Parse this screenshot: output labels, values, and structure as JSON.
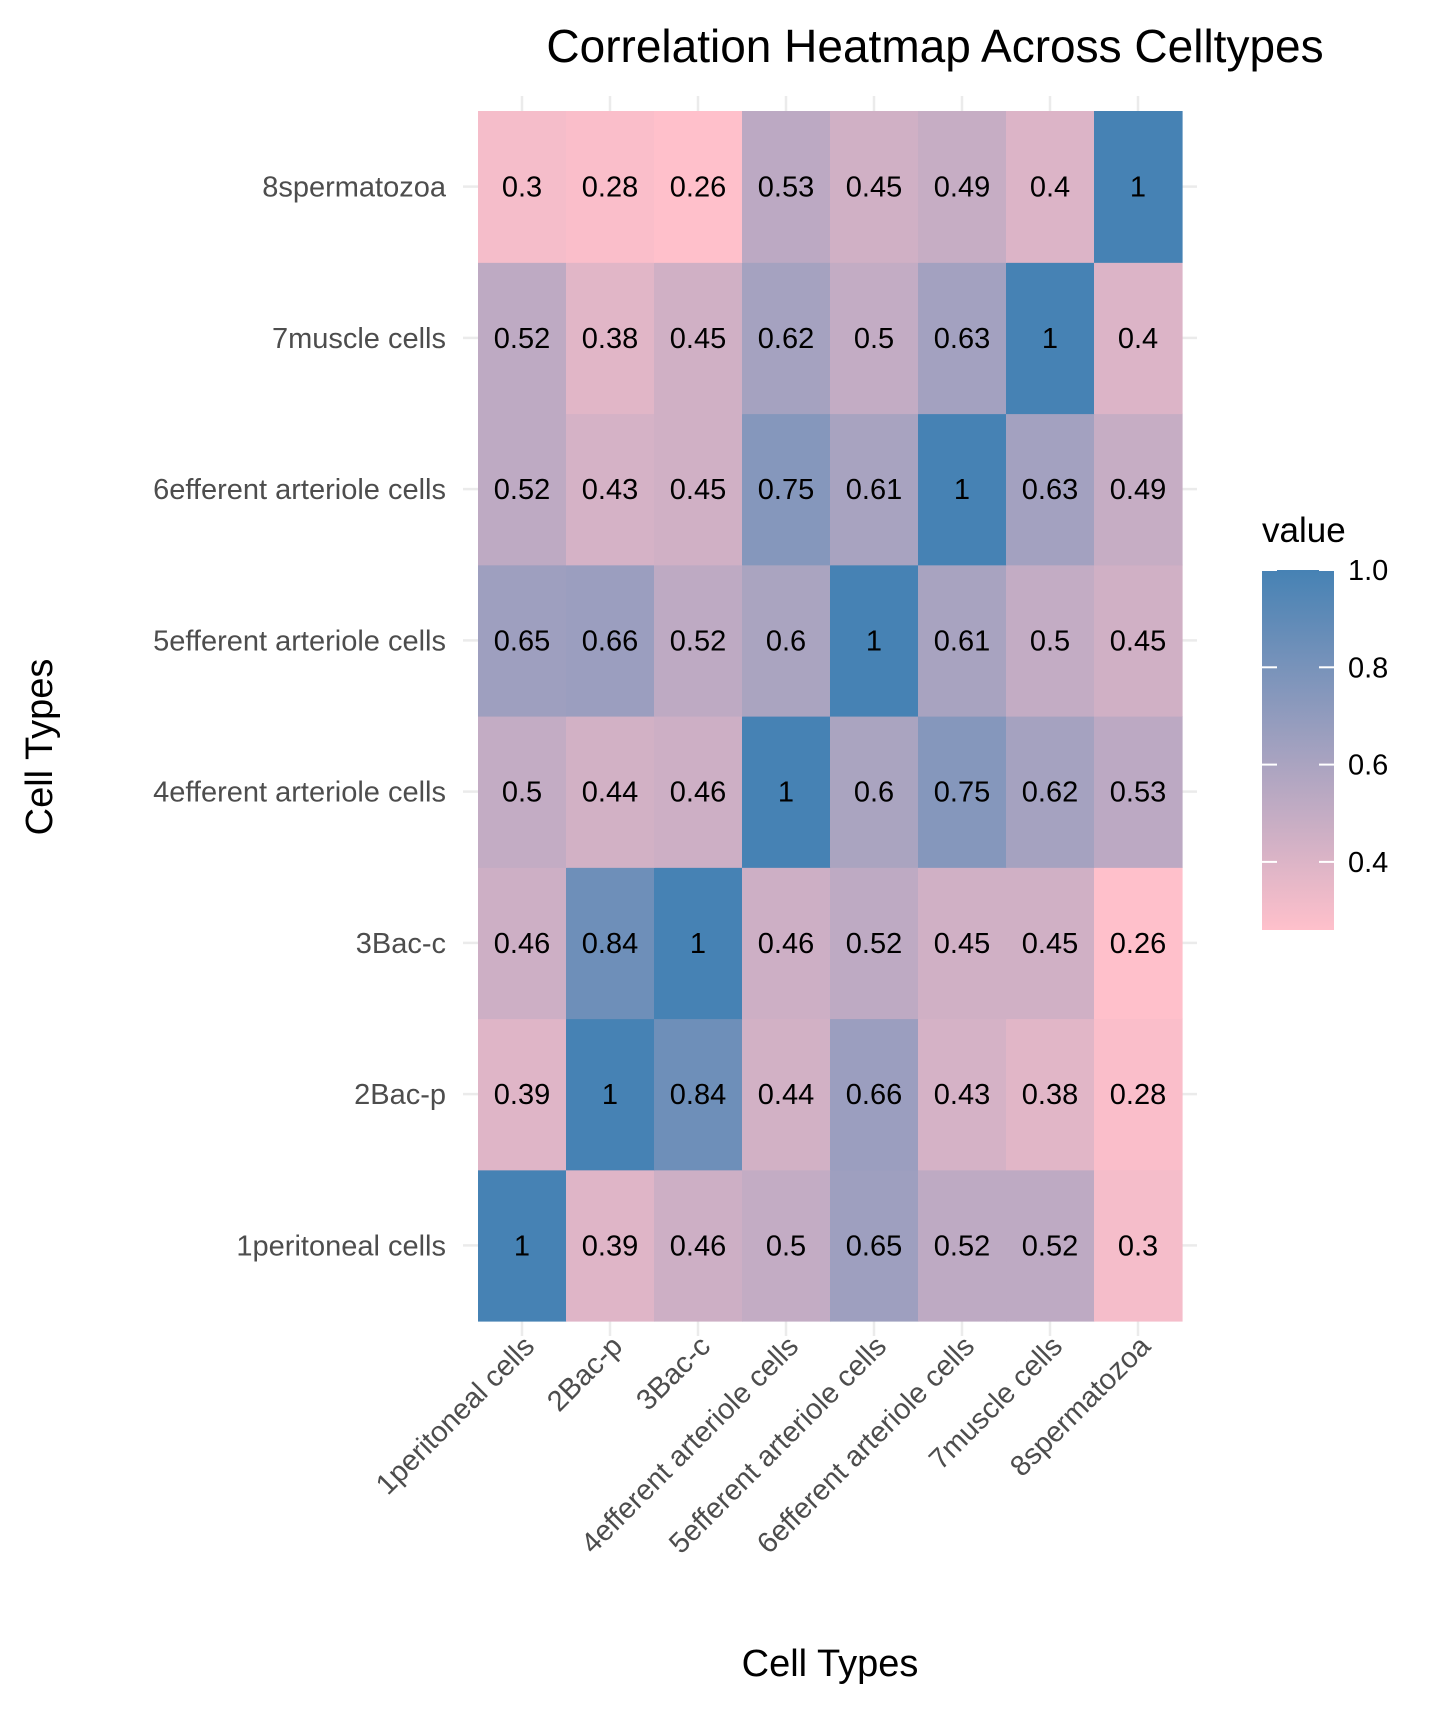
{
  "chart_data": {
    "type": "heatmap",
    "title": "Correlation Heatmap Across Celltypes",
    "xlabel": "Cell Types",
    "ylabel": "Cell Types",
    "categories": [
      "1peritoneal cells",
      "2Bac-p",
      "3Bac-c",
      "4efferent arteriole cells",
      "5efferent arteriole cells",
      "6efferent arteriole cells",
      "7muscle cells",
      "8spermatozoa"
    ],
    "values": [
      [
        1,
        0.39,
        0.46,
        0.5,
        0.65,
        0.52,
        0.52,
        0.3
      ],
      [
        0.39,
        1,
        0.84,
        0.44,
        0.66,
        0.43,
        0.38,
        0.28
      ],
      [
        0.46,
        0.84,
        1,
        0.46,
        0.52,
        0.45,
        0.45,
        0.26
      ],
      [
        0.5,
        0.44,
        0.46,
        1,
        0.6,
        0.75,
        0.62,
        0.53
      ],
      [
        0.65,
        0.66,
        0.52,
        0.6,
        1,
        0.61,
        0.5,
        0.45
      ],
      [
        0.52,
        0.43,
        0.45,
        0.75,
        0.61,
        1,
        0.63,
        0.49
      ],
      [
        0.52,
        0.38,
        0.45,
        0.62,
        0.5,
        0.63,
        1,
        0.4
      ],
      [
        0.3,
        0.28,
        0.26,
        0.53,
        0.45,
        0.49,
        0.4,
        1
      ]
    ],
    "legend": {
      "title": "value",
      "placement": "right",
      "ticks": [
        "1.0",
        "0.8",
        "0.6",
        "0.4"
      ],
      "tick_values": [
        1.0,
        0.8,
        0.6,
        0.4
      ],
      "range": [
        0.26,
        1.0
      ],
      "low_color": "#ffc0cb",
      "high_color": "#4682b4"
    },
    "grid": true
  }
}
